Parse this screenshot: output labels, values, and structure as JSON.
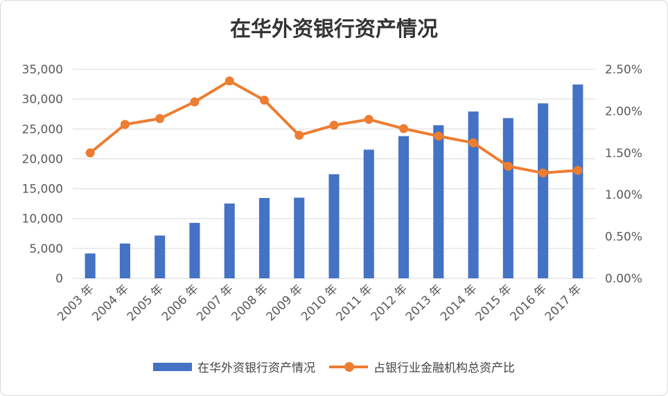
{
  "chart_data": {
    "type": "bar+line",
    "title": "在华外资银行资产情况",
    "categories": [
      "2003 年",
      "2004 年",
      "2005 年",
      "2006 年",
      "2007 年",
      "2008 年",
      "2009 年",
      "2010 年",
      "2011 年",
      "2012 年",
      "2013 年",
      "2014 年",
      "2015 年",
      "2016 年",
      "2017 年"
    ],
    "series": [
      {
        "name": "在华外资银行资产情况",
        "type": "bar",
        "axis": "left",
        "values": [
          4159,
          5823,
          7155,
          9279,
          12525,
          13448,
          13492,
          17423,
          21535,
          23804,
          25628,
          27921,
          26820,
          29286,
          32438
        ]
      },
      {
        "name": "占银行业金融机构总资产比",
        "type": "line",
        "axis": "right",
        "values": [
          1.5,
          1.84,
          1.91,
          2.11,
          2.36,
          2.13,
          1.71,
          1.83,
          1.9,
          1.79,
          1.7,
          1.62,
          1.34,
          1.26,
          1.29
        ]
      }
    ],
    "y_left": {
      "min": 0,
      "max": 35000,
      "ticks": [
        "0",
        "5,000",
        "10,000",
        "15,000",
        "20,000",
        "25,000",
        "30,000",
        "35,000"
      ]
    },
    "y_right": {
      "min": 0,
      "max": 2.5,
      "ticks": [
        "0.00%",
        "0.50%",
        "1.00%",
        "1.50%",
        "2.00%",
        "2.50%"
      ]
    },
    "grid": true,
    "legend_position": "bottom",
    "colors": {
      "bar": "#4472c4",
      "line": "#ed7d31",
      "grid": "#d9d9d9",
      "text": "#595959"
    }
  }
}
